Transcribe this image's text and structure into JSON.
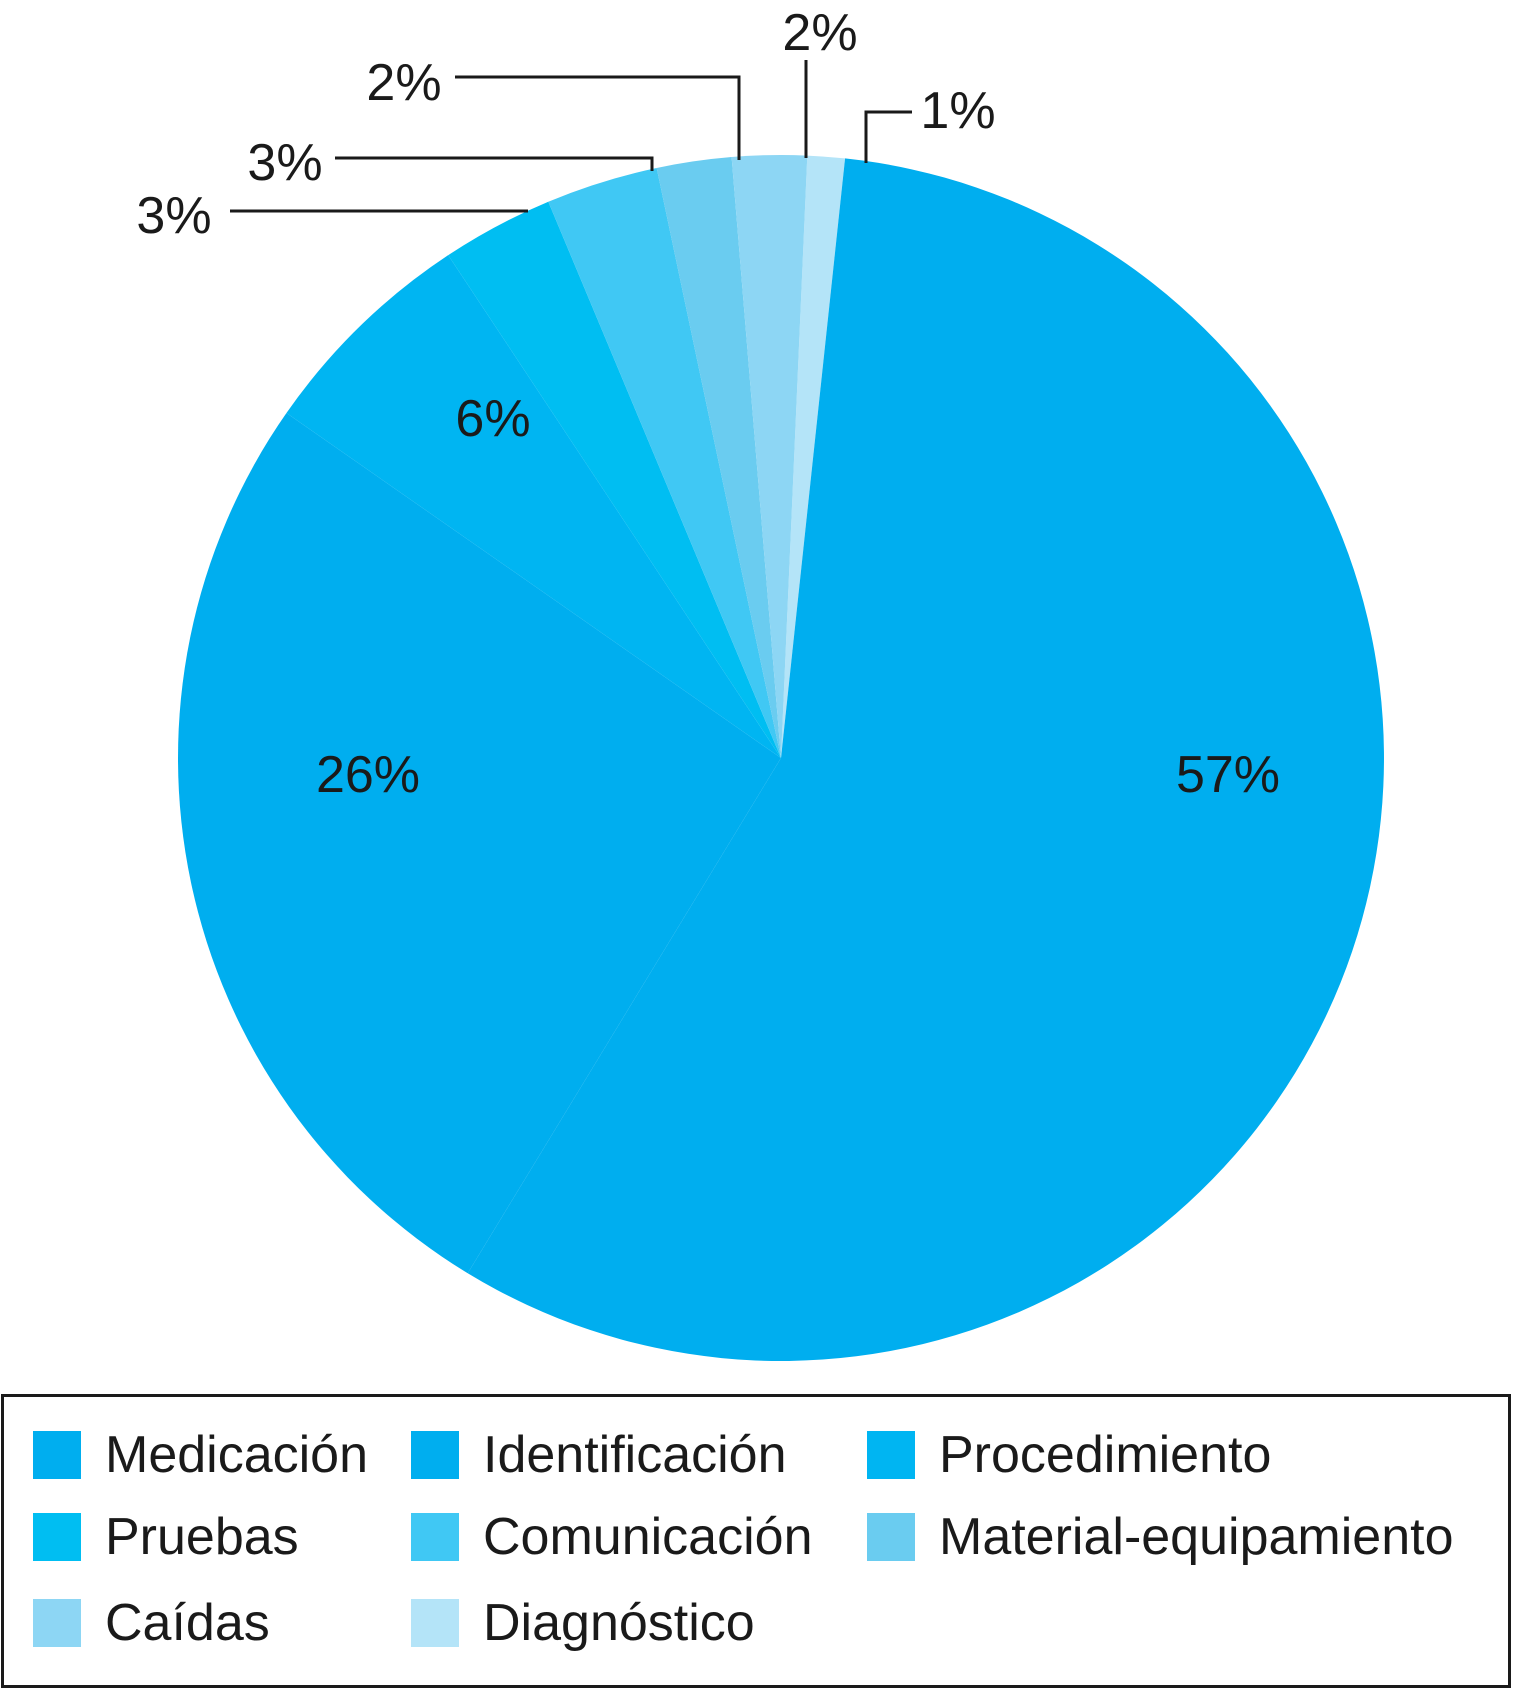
{
  "chart_data": {
    "type": "pie",
    "title": "",
    "slices": [
      {
        "name": "Medicación",
        "value": 57,
        "label": "57%",
        "color": "#00AEEF"
      },
      {
        "name": "Identificación",
        "value": 26,
        "label": "26%",
        "color": "#00AEEF"
      },
      {
        "name": "Procedimiento",
        "value": 6,
        "label": "6%",
        "color": "#00B5F2"
      },
      {
        "name": "Pruebas",
        "value": 3,
        "label": "3%",
        "color": "#00BEF2"
      },
      {
        "name": "Comunicación",
        "value": 3,
        "label": "3%",
        "color": "#40C8F4"
      },
      {
        "name": "Material-equipamiento",
        "value": 2,
        "label": "2%",
        "color": "#6ACCF0"
      },
      {
        "name": "Caídas",
        "value": 2,
        "label": "2%",
        "color": "#8DD6F4"
      },
      {
        "name": "Diagnóstico",
        "value": 1,
        "label": "1%",
        "color": "#B4E4F8"
      }
    ],
    "legend_position": "bottom"
  }
}
